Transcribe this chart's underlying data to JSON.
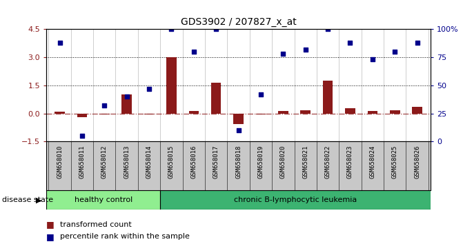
{
  "title": "GDS3902 / 207827_x_at",
  "samples": [
    "GSM658010",
    "GSM658011",
    "GSM658012",
    "GSM658013",
    "GSM658014",
    "GSM658015",
    "GSM658016",
    "GSM658017",
    "GSM658018",
    "GSM658019",
    "GSM658020",
    "GSM658021",
    "GSM658022",
    "GSM658023",
    "GSM658024",
    "GSM658025",
    "GSM658026"
  ],
  "transformed_count": [
    0.1,
    -0.2,
    -0.05,
    1.0,
    -0.05,
    3.0,
    0.12,
    1.65,
    -0.55,
    -0.05,
    0.12,
    0.18,
    1.75,
    0.28,
    0.12,
    0.18,
    0.35
  ],
  "percentile_rank": [
    88,
    5,
    32,
    40,
    47,
    100,
    80,
    100,
    10,
    42,
    78,
    82,
    100,
    88,
    73,
    80,
    88
  ],
  "healthy_control_count": 5,
  "group_labels": [
    "healthy control",
    "chronic B-lymphocytic leukemia"
  ],
  "group_color_hc": "#90EE90",
  "group_color_cl": "#3CB371",
  "bar_color": "#8B1A1A",
  "dot_color": "#00008B",
  "ylim_left": [
    -1.5,
    4.5
  ],
  "ylim_right": [
    0,
    100
  ],
  "yticks_left": [
    -1.5,
    0.0,
    1.5,
    3.0,
    4.5
  ],
  "yticks_right": [
    0,
    25,
    50,
    75,
    100
  ],
  "hline_y": [
    1.5,
    3.0
  ],
  "zero_line_color": "#8B1A1A",
  "disease_state_label": "disease state",
  "legend_bar_label": "transformed count",
  "legend_dot_label": "percentile rank within the sample",
  "xlabel_bg_color": "#C8C8C8",
  "bar_width": 0.45,
  "dot_size": 16
}
